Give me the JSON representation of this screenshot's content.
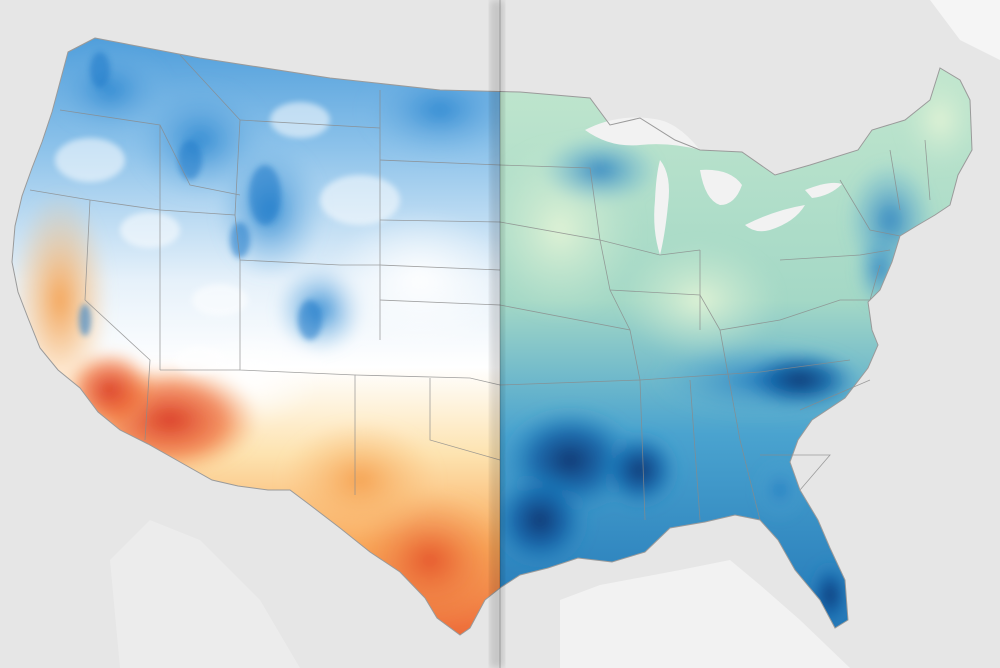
{
  "map": {
    "left_panel": {
      "color_ramp": [
        "#1f78c8",
        "#5aa9e0",
        "#b9d9f0",
        "#ffffff",
        "#fde3b0",
        "#f9b363",
        "#f07b3f",
        "#d8341f"
      ]
    },
    "right_panel": {
      "color_ramp": [
        "#08306b",
        "#0b62a8",
        "#2f8fc8",
        "#6fc0d6",
        "#b3e0c8",
        "#dcf1d4"
      ]
    },
    "colors": {
      "background": "#f2f2f2",
      "land_outside": "#e3e3e3",
      "state_border": "#8a8a8a",
      "great_lakes": "#f2f2f2"
    }
  }
}
